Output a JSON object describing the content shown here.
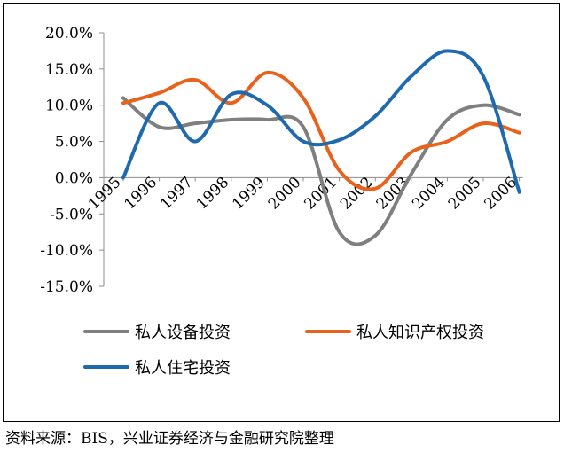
{
  "source_note": "资料来源：BIS，兴业证券经济与金融研究院整理",
  "chart_data": {
    "type": "line",
    "title": "",
    "xlabel": "",
    "ylabel": "",
    "x": [
      "1995",
      "1996",
      "1997",
      "1998",
      "1999",
      "2000",
      "2001",
      "2002",
      "2003",
      "2004",
      "2005",
      "2006"
    ],
    "ylim": [
      -15,
      20
    ],
    "yticks": [
      20,
      15,
      10,
      5,
      0,
      -5,
      -10,
      -15
    ],
    "ytick_labels": [
      "20.0%",
      "15.0%",
      "10.0%",
      "5.0%",
      "0.0%",
      "-5.0%",
      "-10.0%",
      "-15.0%"
    ],
    "grid": false,
    "smooth": true,
    "legend_position": "bottom",
    "series": [
      {
        "name": "私人设备投资",
        "color": "#7f7f7f",
        "values": [
          11.0,
          7.0,
          7.5,
          8.0,
          8.0,
          7.0,
          -7.5,
          -8.0,
          0.5,
          8.0,
          10.0,
          8.7
        ]
      },
      {
        "name": "私人知识产权投资",
        "color": "#e8621c",
        "values": [
          10.3,
          11.7,
          13.5,
          10.3,
          14.5,
          11.0,
          1.0,
          -1.5,
          3.5,
          5.0,
          7.5,
          6.2
        ]
      },
      {
        "name": "私人住宅投资",
        "color": "#1f6aad",
        "values": [
          0.0,
          10.3,
          5.0,
          11.5,
          10.0,
          5.0,
          5.2,
          8.5,
          14.0,
          17.5,
          14.0,
          -2.0
        ]
      }
    ]
  }
}
